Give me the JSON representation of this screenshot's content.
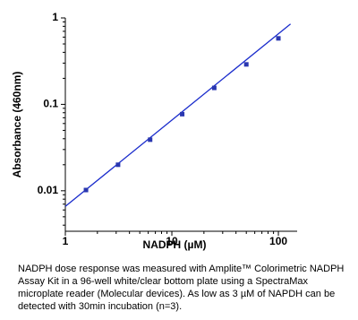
{
  "chart_data": {
    "type": "scatter",
    "xlabel": "NADPH (µM)",
    "ylabel": "Absorbance (460nm)",
    "x": [
      1.5625,
      3.125,
      6.25,
      12.5,
      25,
      50,
      100
    ],
    "values": [
      0.0102,
      0.02,
      0.039,
      0.077,
      0.155,
      0.29,
      0.58
    ],
    "color": "#2a37b0",
    "fit": {
      "x": [
        1,
        130
      ],
      "values": [
        0.0066,
        0.85
      ],
      "color": "#1a2ccc"
    },
    "xscale": "log",
    "yscale": "log",
    "xlim": [
      1,
      150
    ],
    "ylim": [
      0.0034,
      1
    ],
    "xticks": [
      1,
      10,
      100
    ],
    "yticks": [
      0.01,
      0.1,
      1
    ],
    "xminorticks": [
      2,
      3,
      4,
      5,
      6,
      7,
      8,
      9,
      20,
      30,
      40,
      50,
      60,
      70,
      80,
      90
    ],
    "yminorticks": [
      0.004,
      0.005,
      0.006,
      0.007,
      0.008,
      0.009,
      0.02,
      0.03,
      0.04,
      0.05,
      0.06,
      0.07,
      0.08,
      0.09,
      0.2,
      0.3,
      0.4,
      0.5,
      0.6,
      0.7,
      0.8,
      0.9
    ]
  },
  "caption": "NADPH dose response was measured with Amplite™ Colorimetric NADPH Assay Kit in a 96-well white/clear bottom plate using a SpectraMax microplate reader (Molecular devices). As low as 3 µM of NAPDH can be detected with 30min incubation (n=3)."
}
